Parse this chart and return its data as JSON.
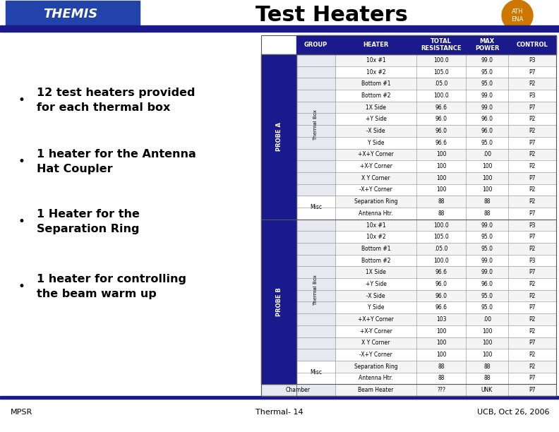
{
  "title": "Test Heaters",
  "title_fontsize": 22,
  "title_color": "#000000",
  "dark_blue": "#1a1a8c",
  "background_color": "#ffffff",
  "footer_left": "MPSR",
  "footer_center": "Thermal- 14",
  "footer_right": "UCB, Oct 26, 2006",
  "bullet_points": [
    "12 test heaters provided\nfor each thermal box",
    "1 heater for the Antenna\nHat Coupler",
    "1 Heater for the\nSeparation Ring",
    "1 heater for controlling\nthe beam warm up"
  ],
  "probe_a_thermal": [
    [
      "10x #1",
      "100.0",
      "99.0",
      "P3"
    ],
    [
      "10x #2",
      "105.0",
      "95.0",
      "P7"
    ],
    [
      "Bottom #1",
      ".05.0",
      "95.0",
      "P2"
    ],
    [
      "Bottom #2",
      "100.0",
      "99.0",
      "P3"
    ],
    [
      "1X Side",
      "96.6",
      "99.0",
      "P7"
    ],
    [
      "+Y Side",
      "96.0",
      "96.0",
      "P2"
    ],
    [
      "-X Side",
      "96.0",
      "96.0",
      "P2"
    ],
    [
      "Y Side",
      "96.6",
      "95.0",
      "P7"
    ],
    [
      "+X+Y Corner",
      "100",
      ".00",
      "P2"
    ],
    [
      "+X-Y Corner",
      "100",
      "100",
      "P2"
    ],
    [
      "X Y Corner",
      "100",
      "100",
      "P7"
    ],
    [
      "-X+Y Corner",
      "100",
      "100",
      "P2"
    ]
  ],
  "probe_a_misc": [
    [
      "Separation Ring",
      "88",
      "88",
      "P2"
    ],
    [
      "Antenna Htr.",
      "88",
      "88",
      "P7"
    ]
  ],
  "probe_b_thermal": [
    [
      "10x #1",
      "100.0",
      "99.0",
      "P3"
    ],
    [
      "10x #2",
      "105.0",
      "95.0",
      "P7"
    ],
    [
      "Bottom #1",
      ".05.0",
      "95.0",
      "P2"
    ],
    [
      "Bottom #2",
      "100.0",
      "99.0",
      "P3"
    ],
    [
      "1X Side",
      "96.6",
      "99.0",
      "P7"
    ],
    [
      "+Y Side",
      "96.0",
      "96.0",
      "P2"
    ],
    [
      "-X Side",
      "96.0",
      "95.0",
      "P2"
    ],
    [
      "Y Side",
      "96.6",
      "95.0",
      "P7"
    ],
    [
      "+X+Y Corner",
      "103",
      ".00",
      "P2"
    ],
    [
      "+X-Y Corner",
      "100",
      "100",
      "P2"
    ],
    [
      "X Y Corner",
      "100",
      "100",
      "P7"
    ],
    [
      "-X+Y Corner",
      "100",
      "100",
      "P2"
    ]
  ],
  "probe_b_misc": [
    [
      "Separation Ring",
      "88",
      "88",
      "P2"
    ],
    [
      "Antenna Htr.",
      "88",
      "88",
      "P7"
    ]
  ],
  "chamber_row": [
    "Beam Heater",
    "???",
    "UNK",
    "P7"
  ]
}
